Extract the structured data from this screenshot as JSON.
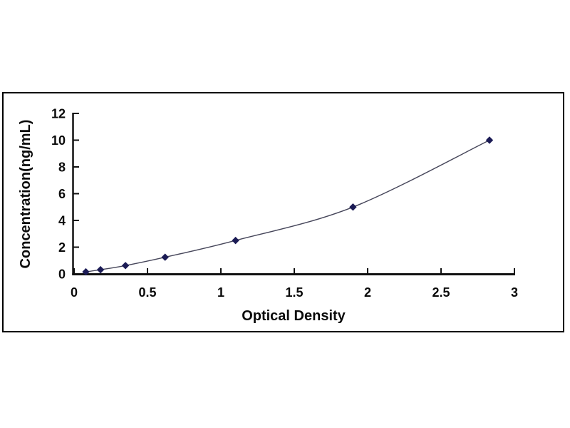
{
  "chart_data": {
    "type": "line",
    "title": "",
    "xlabel": "Optical Density",
    "ylabel": "Concentration(ng/mL)",
    "x": [
      0.08,
      0.18,
      0.35,
      0.62,
      1.1,
      1.9,
      2.83
    ],
    "y": [
      0.156,
      0.313,
      0.625,
      1.25,
      2.5,
      5,
      10
    ],
    "xlim": [
      0,
      3
    ],
    "ylim": [
      0,
      12
    ],
    "x_ticks": [
      0,
      0.5,
      1,
      1.5,
      2,
      2.5,
      3
    ],
    "x_tick_labels": [
      "0",
      "0.5",
      "1",
      "1.5",
      "2",
      "2.5",
      "3"
    ],
    "y_ticks": [
      0,
      2,
      4,
      6,
      8,
      10,
      12
    ],
    "y_tick_labels": [
      "0",
      "2",
      "4",
      "6",
      "8",
      "10",
      "12"
    ],
    "grid": false,
    "legend": null,
    "marker_shape": "diamond",
    "colors": {
      "marker": "#1b1b55",
      "line": "#46465a",
      "axis": "#111111",
      "text": "#0a0a0a",
      "frame_border": "#000000",
      "background": "#ffffff"
    }
  }
}
